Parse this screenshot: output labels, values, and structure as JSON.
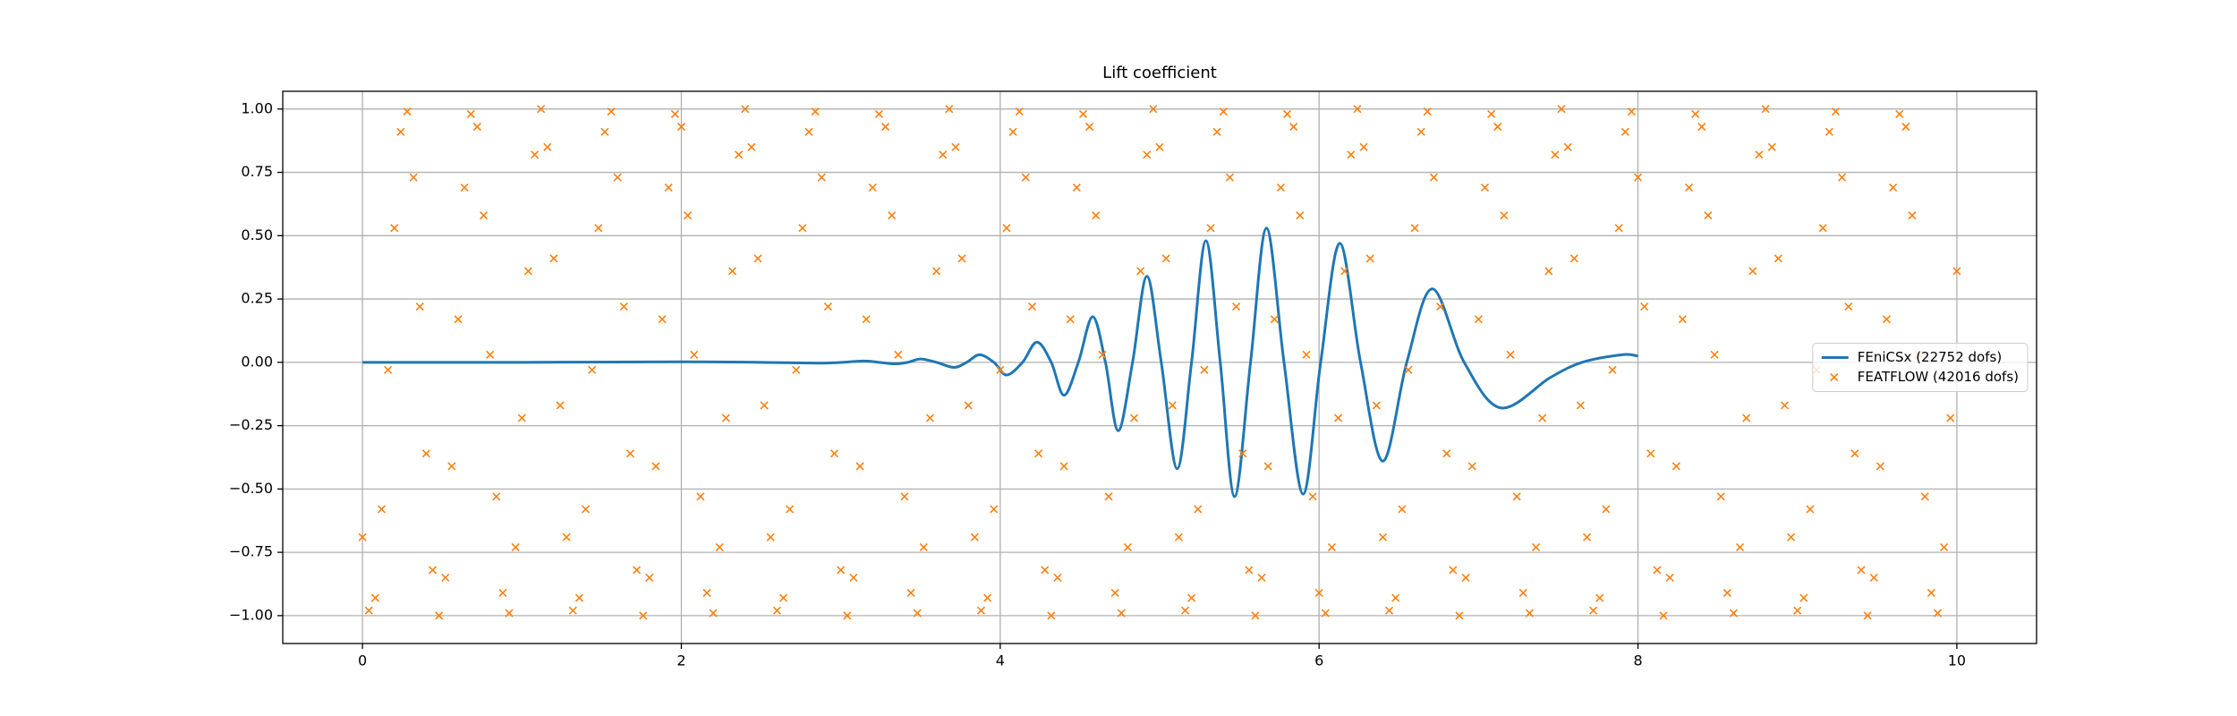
{
  "chart_data": {
    "type": "line",
    "title": "Lift coefficient",
    "xlim": [
      -0.5,
      10.5
    ],
    "ylim": [
      -1.11,
      1.07
    ],
    "xticks": [
      0,
      2,
      4,
      6,
      8,
      10
    ],
    "yticks": [
      {
        "value": -1,
        "label": "−1.00"
      },
      {
        "value": -0.75,
        "label": "−0.75"
      },
      {
        "value": -0.5,
        "label": "−0.50"
      },
      {
        "value": -0.25,
        "label": "−0.25"
      },
      {
        "value": 0,
        "label": "0.00"
      },
      {
        "value": 0.25,
        "label": "0.25"
      },
      {
        "value": 0.5,
        "label": "0.50"
      },
      {
        "value": 0.75,
        "label": "0.75"
      },
      {
        "value": 1,
        "label": "1.00"
      }
    ],
    "grid": true,
    "legend": "center right",
    "series": [
      {
        "name": "FEniCSx  (22752 dofs)",
        "type": "line",
        "color": "#1f77b4",
        "x": [
          0,
          1.0,
          2.0,
          2.5,
          2.9,
          3.14,
          3.24,
          3.34,
          3.42,
          3.5,
          3.6,
          3.71,
          3.79,
          3.87,
          3.96,
          4.04,
          4.14,
          4.23,
          4.32,
          4.4,
          4.49,
          4.58,
          4.66,
          4.74,
          4.83,
          4.92,
          5.01,
          5.11,
          5.2,
          5.29,
          5.38,
          5.47,
          5.57,
          5.67,
          5.78,
          5.9,
          6.01,
          6.13,
          6.26,
          6.4,
          6.55,
          6.71,
          6.91,
          7.14,
          7.45,
          7.65,
          7.9,
          8.0
        ],
        "values": [
          0,
          0,
          0.002,
          0,
          -0.003,
          0.005,
          0,
          -0.006,
          0,
          0.013,
          0,
          -0.02,
          0,
          0.03,
          0,
          -0.05,
          0,
          0.08,
          0,
          -0.13,
          0,
          0.18,
          0,
          -0.27,
          0,
          0.34,
          0,
          -0.42,
          0,
          0.48,
          0,
          -0.53,
          0,
          0.53,
          0,
          -0.52,
          0,
          0.47,
          0,
          -0.39,
          0,
          0.29,
          0,
          -0.18,
          -0.06,
          0,
          0.03,
          0.025
        ]
      },
      {
        "name": "FEATFLOW (42016 dofs)",
        "type": "scatter",
        "color": "#ff7f0e",
        "x": [
          0,
          0.04,
          0.08,
          0.12,
          0.16,
          0.2,
          0.24,
          0.28,
          0.32,
          0.36,
          0.4,
          0.44,
          0.48,
          0.52,
          0.56,
          0.6,
          0.64,
          0.68,
          0.72,
          0.76,
          0.8,
          0.84,
          0.88,
          0.92,
          0.96,
          1,
          1.04,
          1.08,
          1.12,
          1.16,
          1.2,
          1.24,
          1.28,
          1.32,
          1.36,
          1.4,
          1.44,
          1.48,
          1.52,
          1.56,
          1.6,
          1.64,
          1.68,
          1.72,
          1.76,
          1.8,
          1.84,
          1.88,
          1.92,
          1.96,
          2,
          2.04,
          2.08,
          2.12,
          2.16,
          2.2,
          2.24,
          2.28,
          2.32,
          2.36,
          2.4,
          2.44,
          2.48,
          2.52,
          2.56,
          2.6,
          2.64,
          2.68,
          2.72,
          2.76,
          2.8,
          2.84,
          2.88,
          2.92,
          2.96,
          3,
          3.04,
          3.08,
          3.12,
          3.16,
          3.2,
          3.24,
          3.28,
          3.32,
          3.36,
          3.4,
          3.44,
          3.48,
          3.52,
          3.56,
          3.6,
          3.64,
          3.68,
          3.72,
          3.76,
          3.8,
          3.84,
          3.88,
          3.92,
          3.96,
          4,
          4.04,
          4.08,
          4.12,
          4.16,
          4.2,
          4.24,
          4.28,
          4.32,
          4.36,
          4.4,
          4.44,
          4.48,
          4.52,
          4.56,
          4.6,
          4.64,
          4.68,
          4.72,
          4.76,
          4.8,
          4.84,
          4.88,
          4.92,
          4.96,
          5,
          5.04,
          5.08,
          5.12,
          5.16,
          5.2,
          5.24,
          5.28,
          5.32,
          5.36,
          5.4,
          5.44,
          5.48,
          5.52,
          5.56,
          5.6,
          5.64,
          5.68,
          5.72,
          5.76,
          5.8,
          5.84,
          5.88,
          5.92,
          5.96,
          6,
          6.04,
          6.08,
          6.12,
          6.16,
          6.2,
          6.24,
          6.28,
          6.32,
          6.36,
          6.4,
          6.44,
          6.48,
          6.52,
          6.56,
          6.6,
          6.64,
          6.68,
          6.72,
          6.76,
          6.8,
          6.84,
          6.88,
          6.92,
          6.96,
          7,
          7.04,
          7.08,
          7.12,
          7.16,
          7.2,
          7.24,
          7.28,
          7.32,
          7.36,
          7.4,
          7.44,
          7.48,
          7.52,
          7.56,
          7.6,
          7.64,
          7.68,
          7.72,
          7.76,
          7.8,
          7.84,
          7.88,
          7.92,
          7.96,
          8,
          8.04,
          8.08,
          8.12,
          8.16,
          8.2,
          8.24,
          8.28,
          8.32,
          8.36,
          8.4,
          8.44,
          8.48,
          8.52,
          8.56,
          8.6,
          8.64,
          8.68,
          8.72,
          8.76,
          8.8,
          8.84,
          8.88,
          8.92,
          8.96,
          9,
          9.04,
          9.08,
          9.12,
          9.16,
          9.2,
          9.24,
          9.28,
          9.32,
          9.36,
          9.4,
          9.44,
          9.48,
          9.52,
          9.56,
          9.6,
          9.64,
          9.68,
          9.72,
          9.76,
          9.8,
          9.84,
          9.88,
          9.92,
          9.96,
          10
        ],
        "values": [
          -0.69,
          -0.98,
          -0.93,
          -0.58,
          -0.03,
          0.53,
          0.91,
          0.99,
          0.73,
          0.22,
          -0.36,
          -0.82,
          -1.0,
          -0.85,
          -0.41,
          0.17,
          0.69,
          0.98,
          0.93,
          0.58,
          0.03,
          -0.53,
          -0.91,
          -0.99,
          -0.73,
          -0.22,
          0.36,
          0.82,
          1.0,
          0.85,
          0.41,
          -0.17,
          -0.69,
          -0.98,
          -0.93,
          -0.58,
          -0.03,
          0.53,
          0.91,
          0.99,
          0.73,
          0.22,
          -0.36,
          -0.82,
          -1.0,
          -0.85,
          -0.41,
          0.17,
          0.69,
          0.98,
          0.93,
          0.58,
          0.03,
          -0.53,
          -0.91,
          -0.99,
          -0.73,
          -0.22,
          0.36,
          0.82,
          1.0,
          0.85,
          0.41,
          -0.17,
          -0.69,
          -0.98,
          -0.93,
          -0.58,
          -0.03,
          0.53,
          0.91,
          0.99,
          0.73,
          0.22,
          -0.36,
          -0.82,
          -1.0,
          -0.85,
          -0.41,
          0.17,
          0.69,
          0.98,
          0.93,
          0.58,
          0.03,
          -0.53,
          -0.91,
          -0.99,
          -0.73,
          -0.22,
          0.36,
          0.82,
          1.0,
          0.85,
          0.41,
          -0.17,
          -0.69,
          -0.98,
          -0.93,
          -0.58,
          -0.03,
          0.53,
          0.91,
          0.99,
          0.73,
          0.22,
          -0.36,
          -0.82,
          -1.0,
          -0.85,
          -0.41,
          0.17,
          0.69,
          0.98,
          0.93,
          0.58,
          0.03,
          -0.53,
          -0.91,
          -0.99,
          -0.73,
          -0.22,
          0.36,
          0.82,
          1.0,
          0.85,
          0.41,
          -0.17,
          -0.69,
          -0.98,
          -0.93,
          -0.58,
          -0.03,
          0.53,
          0.91,
          0.99,
          0.73,
          0.22,
          -0.36,
          -0.82,
          -1.0,
          -0.85,
          -0.41,
          0.17,
          0.69,
          0.98,
          0.93,
          0.58,
          0.03,
          -0.53,
          -0.91,
          -0.99,
          -0.73,
          -0.22,
          0.36,
          0.82,
          1.0,
          0.85,
          0.41,
          -0.17,
          -0.69,
          -0.98,
          -0.93,
          -0.58,
          -0.03,
          0.53,
          0.91,
          0.99,
          0.73,
          0.22,
          -0.36,
          -0.82,
          -1.0,
          -0.85,
          -0.41,
          0.17,
          0.69,
          0.98,
          0.93,
          0.58,
          0.03,
          -0.53,
          -0.91,
          -0.99,
          -0.73,
          -0.22,
          0.36,
          0.82,
          1.0,
          0.85,
          0.41,
          -0.17,
          -0.69,
          -0.98,
          -0.93,
          -0.58,
          -0.03,
          0.53,
          0.91,
          0.99,
          0.73,
          0.22,
          -0.36,
          -0.82,
          -1.0,
          -0.85,
          -0.41,
          0.17,
          0.69,
          0.98,
          0.93,
          0.58,
          0.03,
          -0.53,
          -0.91,
          -0.99,
          -0.73,
          -0.22,
          0.36,
          0.82,
          1.0,
          0.85,
          0.41,
          -0.17,
          -0.69,
          -0.98,
          -0.93,
          -0.58,
          -0.03,
          0.53,
          0.91,
          0.99,
          0.73,
          0.22,
          -0.36,
          -0.82,
          -1.0,
          -0.85,
          -0.41,
          0.17,
          0.69,
          0.98,
          0.93,
          0.58,
          0.03,
          -0.53,
          -0.91,
          -0.99,
          -0.73,
          -0.22,
          0.36
        ]
      }
    ]
  }
}
